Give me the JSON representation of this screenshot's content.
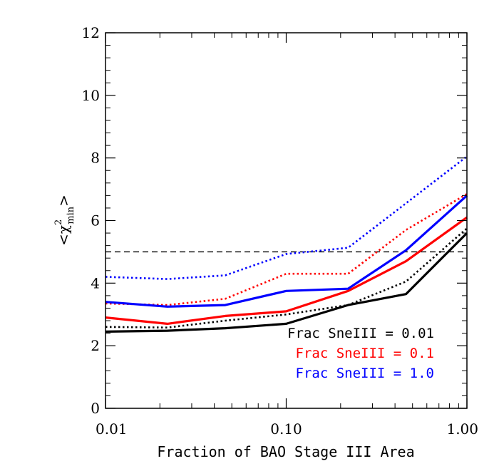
{
  "chart_data": {
    "type": "line",
    "xlabel": "Fraction of BAO Stage III Area",
    "ylabel": {
      "open": "<",
      "chi": "χ",
      "sup": "2",
      "sub": "min",
      "close": ">"
    },
    "x_scale": "log",
    "xlim": [
      0.01,
      1.0
    ],
    "ylim": [
      0,
      12
    ],
    "x_ticks": [
      0.01,
      0.1,
      1.0
    ],
    "x_tick_labels": [
      "0.01",
      "0.10",
      "1.00"
    ],
    "y_ticks": [
      0,
      2,
      4,
      6,
      8,
      10,
      12
    ],
    "y_tick_labels": [
      "0",
      "2",
      "4",
      "6",
      "8",
      "10",
      "12"
    ],
    "reference_line": {
      "y": 5.0,
      "style": "dashed",
      "color": "#000000"
    },
    "legend": [
      {
        "text": "Frac SneIII = 0.01",
        "color": "#000000"
      },
      {
        "text": "Frac SneIII = 0.1",
        "color": "#ff0000"
      },
      {
        "text": "Frac SneIII = 1.0",
        "color": "#0000ff"
      }
    ],
    "legend_position": "lower-right",
    "series": [
      {
        "color": "#000000",
        "style": "solid",
        "x": [
          0.01,
          0.022,
          0.046,
          0.1,
          0.22,
          0.46,
          1.0
        ],
        "y": [
          2.45,
          2.48,
          2.56,
          2.7,
          3.3,
          3.65,
          5.6
        ]
      },
      {
        "color": "#000000",
        "style": "dotted",
        "x": [
          0.01,
          0.022,
          0.046,
          0.1,
          0.22,
          0.46,
          1.0
        ],
        "y": [
          2.6,
          2.58,
          2.8,
          3.0,
          3.3,
          4.05,
          5.75
        ]
      },
      {
        "color": "#ff0000",
        "style": "solid",
        "x": [
          0.01,
          0.022,
          0.046,
          0.1,
          0.22,
          0.46,
          1.0
        ],
        "y": [
          2.9,
          2.7,
          2.95,
          3.1,
          3.75,
          4.7,
          6.1
        ]
      },
      {
        "color": "#ff0000",
        "style": "dotted",
        "x": [
          0.01,
          0.022,
          0.046,
          0.1,
          0.22,
          0.46,
          1.0
        ],
        "y": [
          3.35,
          3.3,
          3.5,
          4.3,
          4.3,
          5.7,
          6.85
        ]
      },
      {
        "color": "#0000ff",
        "style": "solid",
        "x": [
          0.01,
          0.022,
          0.046,
          0.1,
          0.22,
          0.46,
          1.0
        ],
        "y": [
          3.4,
          3.25,
          3.3,
          3.75,
          3.82,
          5.05,
          6.8
        ]
      },
      {
        "color": "#0000ff",
        "style": "dotted",
        "x": [
          0.01,
          0.022,
          0.046,
          0.1,
          0.22,
          0.46,
          1.0
        ],
        "y": [
          4.2,
          4.13,
          4.25,
          4.93,
          5.13,
          6.55,
          8.05
        ]
      }
    ]
  }
}
